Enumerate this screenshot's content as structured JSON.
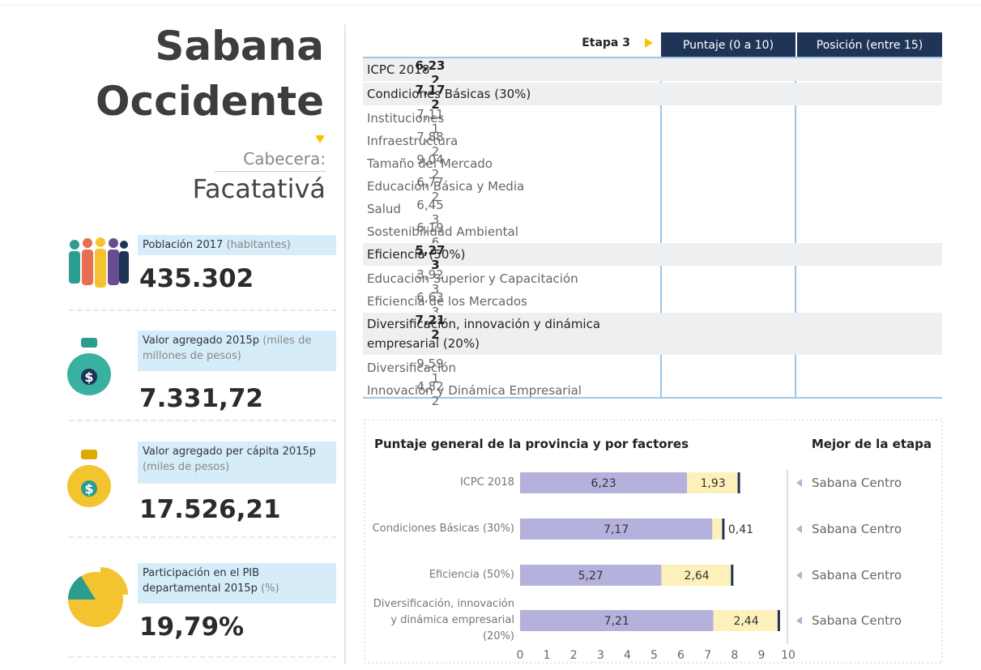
{
  "header": {
    "title_line1": "Sabana",
    "title_line2": "Occidente",
    "capital_label": "Cabecera:",
    "capital": "Facatativá"
  },
  "indicators": [
    {
      "label": "Población 2017",
      "unit": "(habitantes)",
      "value": "435.302"
    },
    {
      "label": "Valor agregado 2015p",
      "unit": "(miles de millones de pesos)",
      "value": "7.331,72"
    },
    {
      "label": "Valor agregado per cápita 2015p",
      "unit": "(miles de pesos)",
      "value": "17.526,21"
    },
    {
      "label": "Participación en el PIB departamental 2015p",
      "unit": "(%)",
      "value": "19,79%"
    }
  ],
  "table": {
    "stage": "Etapa 3",
    "columns": [
      "Puntaje (0 a 10)",
      "Posición (entre 15)"
    ],
    "rows": [
      {
        "name": "ICPC 2018",
        "score": "6,23",
        "position": "2",
        "bold": true
      },
      {
        "name": "Condiciones Básicas (30%)",
        "score": "7,17",
        "position": "2",
        "bold": true
      },
      {
        "name": "Instituciones",
        "score": "7,11",
        "position": "1",
        "bold": false
      },
      {
        "name": "Infraestructura",
        "score": "7,88",
        "position": "2",
        "bold": false
      },
      {
        "name": "Tamaño del Mercado",
        "score": "9,04",
        "position": "2",
        "bold": false
      },
      {
        "name": "Educación Básica y Media",
        "score": "6,77",
        "position": "2",
        "bold": false
      },
      {
        "name": "Salud",
        "score": "6,45",
        "position": "3",
        "bold": false
      },
      {
        "name": "Sostenibilidad Ambiental",
        "score": "6,19",
        "position": "6",
        "bold": false
      },
      {
        "name": "Eficiencia (50%)",
        "score": "5,27",
        "position": "3",
        "bold": true
      },
      {
        "name": "Educación Superior y Capacitación",
        "score": "3,92",
        "position": "3",
        "bold": false
      },
      {
        "name": "Eficiencia de los Mercados",
        "score": "6,63",
        "position": "3",
        "bold": false
      },
      {
        "name": "Diversificación, innovación y dinámica empresarial (20%)",
        "score": "7,21",
        "position": "2",
        "bold": true
      },
      {
        "name": "Diversificación",
        "score": "9,59",
        "position": "1",
        "bold": false
      },
      {
        "name": "Innovación y Dinámica Empresarial",
        "score": "4,82",
        "position": "2",
        "bold": false
      }
    ]
  },
  "chart_data": {
    "type": "bar",
    "orientation": "horizontal",
    "stacked": true,
    "title": "Puntaje general de la provincia y por factores",
    "best_title": "Mejor de la etapa",
    "categories": [
      "ICPC 2018",
      "Condiciones Básicas (30%)",
      "Eficiencia (50%)",
      "Diversificación, innovación y dinámica empresarial (20%)"
    ],
    "series": [
      {
        "color": "#b4b1dd",
        "values": [
          6.23,
          7.17,
          5.27,
          7.21
        ],
        "value_labels": [
          "6,23",
          "7,17",
          "5,27",
          "7,21"
        ]
      },
      {
        "color": "#fdf1bb",
        "values": [
          1.93,
          0.41,
          2.64,
          2.44
        ],
        "value_labels": [
          "1,93",
          "0,41",
          "2,64",
          "2,44"
        ]
      }
    ],
    "best": [
      "Sabana Centro",
      "Sabana Centro",
      "Sabana Centro",
      "Sabana Centro"
    ],
    "xlim": [
      0,
      10
    ],
    "xticks": [
      0,
      1,
      2,
      3,
      4,
      5,
      6,
      7,
      8,
      9,
      10
    ]
  }
}
